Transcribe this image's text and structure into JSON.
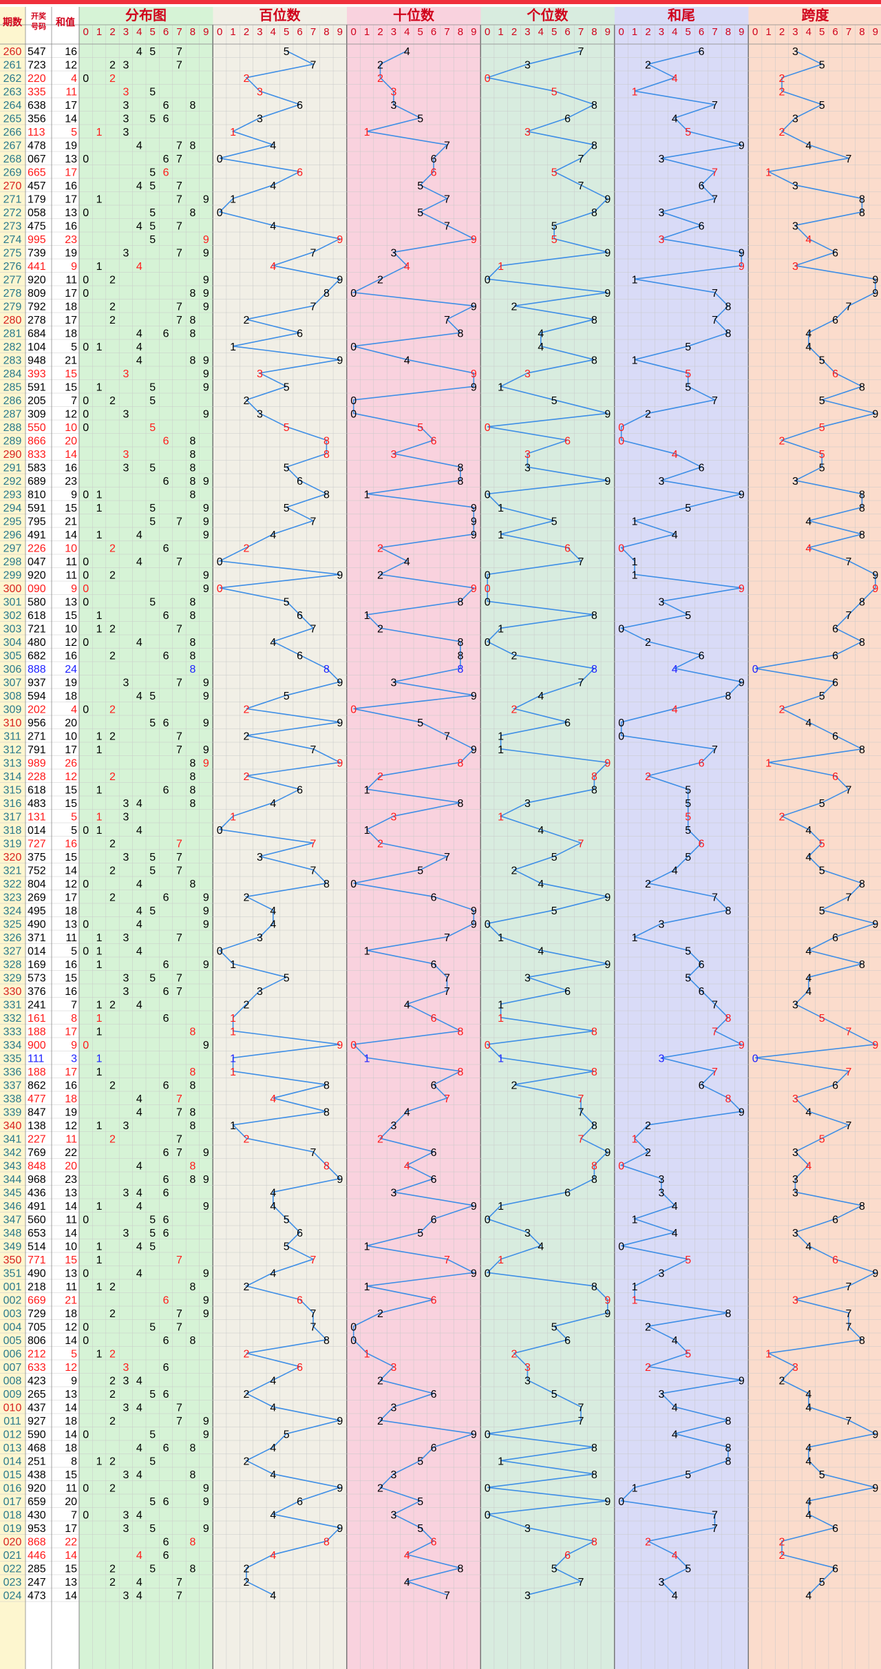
{
  "headers": {
    "period": "期数",
    "draw_number": "开奖号码",
    "sum": "和值",
    "distribution": "分布图",
    "hundreds": "百位数",
    "tens": "十位数",
    "units": "个位数",
    "sum_tail": "和尾",
    "span": "跨度"
  },
  "digits": [
    "0",
    "1",
    "2",
    "3",
    "4",
    "5",
    "6",
    "7",
    "8",
    "9"
  ],
  "colors": {
    "top_bar": "#f0303c",
    "header_text": "#d0021b",
    "period_red": "#d8231f",
    "period_teal": "#2a7a8c",
    "cell_red": "#ff1a1a",
    "cell_blue": "#1e22ff",
    "line": "#3d8ee6",
    "bg_left": "#fdf6cf",
    "bg_distribution": "#d6f3d6",
    "bg_hundreds": "#f1efe6",
    "bg_tens": "#f9d2de",
    "bg_units": "#d8ecdf",
    "bg_sum_tail": "#d9dbf7",
    "bg_span": "#fbdccc",
    "grid": "#c8c8c8"
  },
  "chart_data": {
    "type": "table",
    "title": "",
    "rows": [
      [
        "260",
        "547",
        16
      ],
      [
        "261",
        "723",
        12
      ],
      [
        "262",
        "220",
        4
      ],
      [
        "263",
        "335",
        11
      ],
      [
        "264",
        "638",
        17
      ],
      [
        "265",
        "356",
        14
      ],
      [
        "266",
        "113",
        5
      ],
      [
        "267",
        "478",
        19
      ],
      [
        "268",
        "067",
        13
      ],
      [
        "269",
        "665",
        17
      ],
      [
        "270",
        "457",
        16
      ],
      [
        "271",
        "179",
        17
      ],
      [
        "272",
        "058",
        13
      ],
      [
        "273",
        "475",
        16
      ],
      [
        "274",
        "995",
        23
      ],
      [
        "275",
        "739",
        19
      ],
      [
        "276",
        "441",
        9
      ],
      [
        "277",
        "920",
        11
      ],
      [
        "278",
        "809",
        17
      ],
      [
        "279",
        "792",
        18
      ],
      [
        "280",
        "278",
        17
      ],
      [
        "281",
        "684",
        18
      ],
      [
        "282",
        "104",
        5
      ],
      [
        "283",
        "948",
        21
      ],
      [
        "284",
        "393",
        15
      ],
      [
        "285",
        "591",
        15
      ],
      [
        "286",
        "205",
        7
      ],
      [
        "287",
        "309",
        12
      ],
      [
        "288",
        "550",
        10
      ],
      [
        "289",
        "866",
        20
      ],
      [
        "290",
        "833",
        14
      ],
      [
        "291",
        "583",
        16
      ],
      [
        "292",
        "689",
        23
      ],
      [
        "293",
        "810",
        9
      ],
      [
        "294",
        "591",
        15
      ],
      [
        "295",
        "795",
        21
      ],
      [
        "296",
        "491",
        14
      ],
      [
        "297",
        "226",
        10
      ],
      [
        "298",
        "047",
        11
      ],
      [
        "299",
        "920",
        11
      ],
      [
        "300",
        "090",
        9
      ],
      [
        "301",
        "580",
        13
      ],
      [
        "302",
        "618",
        15
      ],
      [
        "303",
        "721",
        10
      ],
      [
        "304",
        "480",
        12
      ],
      [
        "305",
        "682",
        16
      ],
      [
        "306",
        "888",
        24
      ],
      [
        "307",
        "937",
        19
      ],
      [
        "308",
        "594",
        18
      ],
      [
        "309",
        "202",
        4
      ],
      [
        "310",
        "956",
        20
      ],
      [
        "311",
        "271",
        10
      ],
      [
        "312",
        "791",
        17
      ],
      [
        "313",
        "989",
        26
      ],
      [
        "314",
        "228",
        12
      ],
      [
        "315",
        "618",
        15
      ],
      [
        "316",
        "483",
        15
      ],
      [
        "317",
        "131",
        5
      ],
      [
        "318",
        "014",
        5
      ],
      [
        "319",
        "727",
        16
      ],
      [
        "320",
        "375",
        15
      ],
      [
        "321",
        "752",
        14
      ],
      [
        "322",
        "804",
        12
      ],
      [
        "323",
        "269",
        17
      ],
      [
        "324",
        "495",
        18
      ],
      [
        "325",
        "490",
        13
      ],
      [
        "326",
        "371",
        11
      ],
      [
        "327",
        "014",
        5
      ],
      [
        "328",
        "169",
        16
      ],
      [
        "329",
        "573",
        15
      ],
      [
        "330",
        "376",
        16
      ],
      [
        "331",
        "241",
        7
      ],
      [
        "332",
        "161",
        8
      ],
      [
        "333",
        "188",
        17
      ],
      [
        "334",
        "900",
        9
      ],
      [
        "335",
        "111",
        3
      ],
      [
        "336",
        "188",
        17
      ],
      [
        "337",
        "862",
        16
      ],
      [
        "338",
        "477",
        18
      ],
      [
        "339",
        "847",
        19
      ],
      [
        "340",
        "138",
        12
      ],
      [
        "341",
        "227",
        11
      ],
      [
        "342",
        "769",
        22
      ],
      [
        "343",
        "848",
        20
      ],
      [
        "344",
        "968",
        23
      ],
      [
        "345",
        "436",
        13
      ],
      [
        "346",
        "491",
        14
      ],
      [
        "347",
        "560",
        11
      ],
      [
        "348",
        "653",
        14
      ],
      [
        "349",
        "514",
        10
      ],
      [
        "350",
        "771",
        15
      ],
      [
        "351",
        "490",
        13
      ],
      [
        "001",
        "218",
        11
      ],
      [
        "002",
        "669",
        21
      ],
      [
        "003",
        "729",
        18
      ],
      [
        "004",
        "705",
        12
      ],
      [
        "005",
        "806",
        14
      ],
      [
        "006",
        "212",
        5
      ],
      [
        "007",
        "633",
        12
      ],
      [
        "008",
        "423",
        9
      ],
      [
        "009",
        "265",
        13
      ],
      [
        "010",
        "437",
        14
      ],
      [
        "011",
        "927",
        18
      ],
      [
        "012",
        "590",
        14
      ],
      [
        "013",
        "468",
        18
      ],
      [
        "014",
        "251",
        8
      ],
      [
        "015",
        "438",
        15
      ],
      [
        "016",
        "920",
        11
      ],
      [
        "017",
        "659",
        20
      ],
      [
        "018",
        "430",
        7
      ],
      [
        "019",
        "953",
        17
      ],
      [
        "020",
        "868",
        22
      ],
      [
        "021",
        "446",
        14
      ],
      [
        "022",
        "285",
        15
      ],
      [
        "023",
        "247",
        13
      ],
      [
        "024",
        "473",
        14
      ]
    ]
  }
}
